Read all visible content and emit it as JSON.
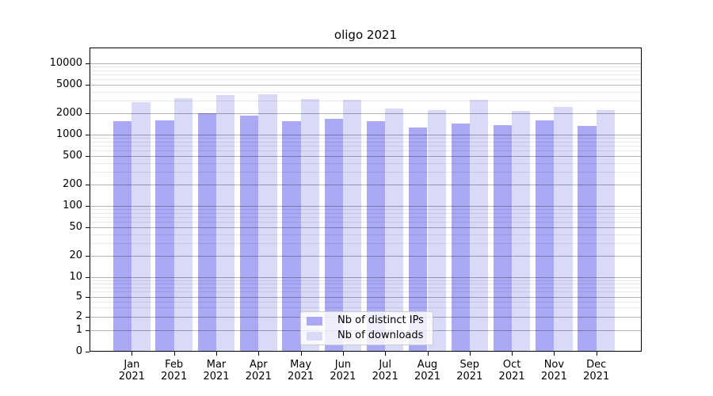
{
  "chart_data": {
    "type": "bar",
    "title": "oligo 2021",
    "xlabel": "",
    "ylabel": "",
    "year": "2021",
    "categories": [
      "Jan",
      "Feb",
      "Mar",
      "Apr",
      "May",
      "Jun",
      "Jul",
      "Aug",
      "Sep",
      "Oct",
      "Nov",
      "Dec"
    ],
    "series": [
      {
        "name": "Nb of distinct IPs",
        "color": "#a9a9f6",
        "values": [
          1530,
          1585,
          1975,
          1830,
          1560,
          1670,
          1560,
          1270,
          1415,
          1360,
          1600,
          1325
        ]
      },
      {
        "name": "Nb of downloads",
        "color": "#d9d9f8",
        "values": [
          2860,
          3240,
          3560,
          3650,
          3130,
          3050,
          2330,
          2230,
          3080,
          2155,
          2470,
          2190
        ]
      }
    ],
    "y_scale": "log-1-2-5-with-zero",
    "y_ticks": [
      10000,
      5000,
      2000,
      1000,
      500,
      200,
      100,
      50,
      20,
      10,
      5,
      2,
      1,
      0
    ],
    "y_minor_ticks": [
      3,
      4,
      6,
      7,
      8,
      9,
      30,
      40,
      60,
      70,
      80,
      90,
      300,
      400,
      600,
      700,
      800,
      900,
      3000,
      4000,
      6000,
      7000,
      8000,
      9000
    ],
    "ylim": [
      0,
      17000
    ],
    "grid": "horizontal major and minor, drawn over bars",
    "legend": {
      "position": "bottom-center-inside",
      "entries": [
        "Nb of distinct IPs",
        "Nb of downloads"
      ]
    },
    "colors": {
      "bar_distinct_ips": "#a9a9f6",
      "bar_downloads": "#d9d9f8",
      "grid_major": "rgba(0,0,0,0.30)",
      "grid_minor": "rgba(0,0,0,0.09)",
      "spine": "#000000",
      "legend_border": "#cccccc",
      "legend_background": "rgba(255,255,255,0.8)"
    }
  }
}
